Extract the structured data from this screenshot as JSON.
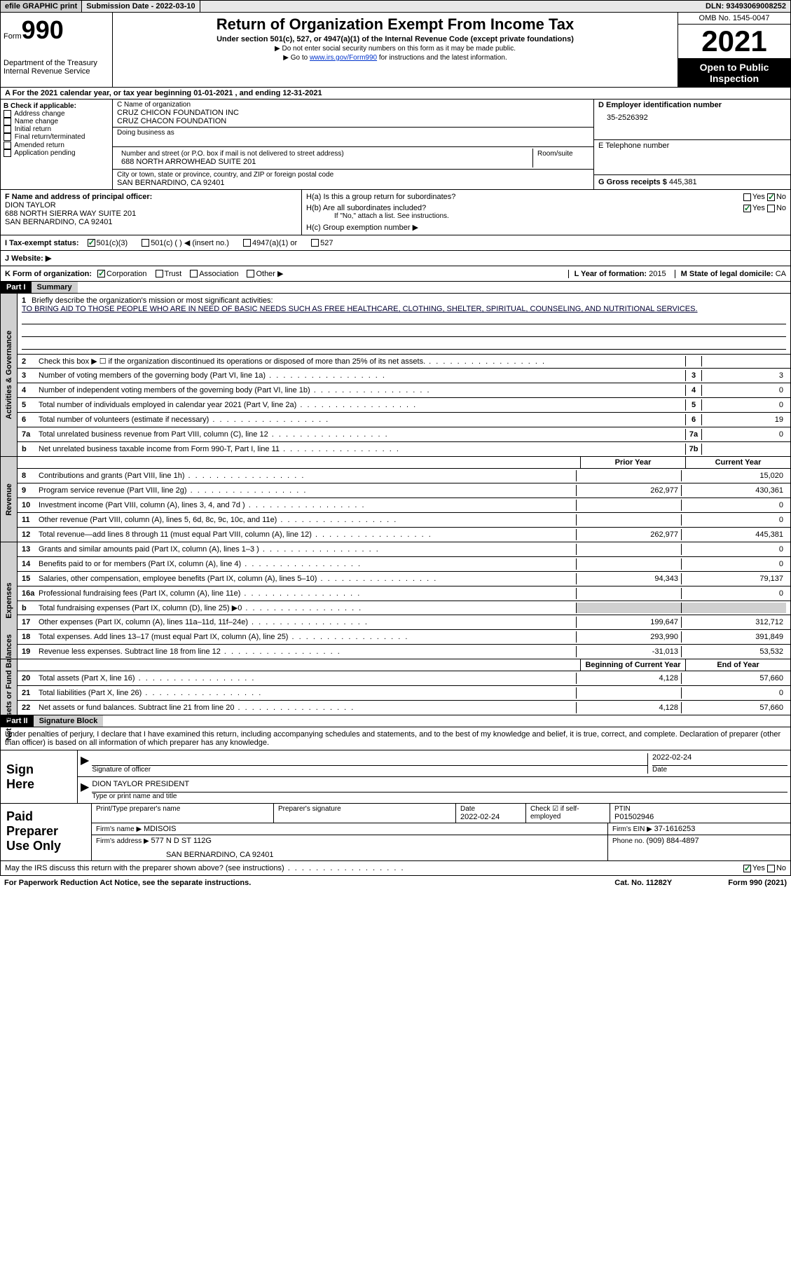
{
  "top_bar": {
    "efile": "efile GRAPHIC print",
    "sub_date_label": "Submission Date - ",
    "sub_date": "2022-03-10",
    "dln_label": "DLN: ",
    "dln": "93493069008252"
  },
  "header": {
    "form_label": "Form",
    "form_no": "990",
    "dept": "Department of the Treasury",
    "irs": "Internal Revenue Service",
    "title": "Return of Organization Exempt From Income Tax",
    "subtitle": "Under section 501(c), 527, or 4947(a)(1) of the Internal Revenue Code (except private foundations)",
    "line1": "▶ Do not enter social security numbers on this form as it may be made public.",
    "line2_pre": "▶ Go to ",
    "line2_link": "www.irs.gov/Form990",
    "line2_post": " for instructions and the latest information.",
    "omb": "OMB No. 1545-0047",
    "year": "2021",
    "open": "Open to Public Inspection"
  },
  "section_a": "A For the 2021 calendar year, or tax year beginning 01-01-2021    , and ending 12-31-2021",
  "col_b": {
    "heading": "B Check if applicable:",
    "items": [
      "Address change",
      "Name change",
      "Initial return",
      "Final return/terminated",
      "Amended return",
      "Application pending"
    ]
  },
  "col_c": {
    "name_label": "C Name of organization",
    "name1": "CRUZ CHICON FOUNDATION INC",
    "name2": "CRUZ CHACON FOUNDATION",
    "dba_label": "Doing business as",
    "addr_label": "Number and street (or P.O. box if mail is not delivered to street address)",
    "room_label": "Room/suite",
    "addr": "688 NORTH ARROWHEAD SUITE 201",
    "city_label": "City or town, state or province, country, and ZIP or foreign postal code",
    "city": "SAN BERNARDINO, CA  92401"
  },
  "col_d": {
    "ein_label": "D Employer identification number",
    "ein": "35-2526392",
    "phone_label": "E Telephone number",
    "gross_label": "G Gross receipts $ ",
    "gross": "445,381"
  },
  "col_f": {
    "label": "F  Name and address of principal officer:",
    "name": "DION TAYLOR",
    "addr1": "688 NORTH SIERRA WAY SUITE 201",
    "addr2": "SAN BERNARDINO, CA  92401"
  },
  "col_h": {
    "ha_label": "H(a)  Is this a group return for subordinates?",
    "hb_label": "H(b)  Are all subordinates included?",
    "hb_note": "If \"No,\" attach a list. See instructions.",
    "hc_label": "H(c)  Group exemption number ▶"
  },
  "status": {
    "i_label": "I  Tax-exempt status:",
    "opts": [
      "501(c)(3)",
      "501(c) (  ) ◀ (insert no.)",
      "4947(a)(1) or",
      "527"
    ],
    "j_label": "J  Website: ▶"
  },
  "row_k": {
    "k_label": "K Form of organization:",
    "opts": [
      "Corporation",
      "Trust",
      "Association",
      "Other ▶"
    ],
    "l_label": "L Year of formation: ",
    "l_val": "2015",
    "m_label": "M State of legal domicile: ",
    "m_val": "CA"
  },
  "part1": {
    "part": "Part I",
    "title": "Summary"
  },
  "mission": {
    "num": "1",
    "label": "Briefly describe the organization's mission or most significant activities:",
    "text": "TO BRING AID TO THOSE PEOPLE WHO ARE IN NEED OF BASIC NEEDS SUCH AS FREE HEALTHCARE, CLOTHING, SHELTER, SPIRITUAL, COUNSELING, AND NUTRITIONAL SERVICES."
  },
  "gov_lines": [
    {
      "num": "2",
      "label": "Check this box ▶ ☐ if the organization discontinued its operations or disposed of more than 25% of its net assets.",
      "box": "",
      "val": ""
    },
    {
      "num": "3",
      "label": "Number of voting members of the governing body (Part VI, line 1a)",
      "box": "3",
      "val": "3"
    },
    {
      "num": "4",
      "label": "Number of independent voting members of the governing body (Part VI, line 1b)",
      "box": "4",
      "val": "0"
    },
    {
      "num": "5",
      "label": "Total number of individuals employed in calendar year 2021 (Part V, line 2a)",
      "box": "5",
      "val": "0"
    },
    {
      "num": "6",
      "label": "Total number of volunteers (estimate if necessary)",
      "box": "6",
      "val": "19"
    },
    {
      "num": "7a",
      "label": "Total unrelated business revenue from Part VIII, column (C), line 12",
      "box": "7a",
      "val": "0"
    },
    {
      "num": "b",
      "label": "Net unrelated business taxable income from Form 990-T, Part I, line 11",
      "box": "7b",
      "val": ""
    }
  ],
  "col_headers": {
    "prior": "Prior Year",
    "curr": "Current Year"
  },
  "revenue": [
    {
      "num": "8",
      "label": "Contributions and grants (Part VIII, line 1h)",
      "prior": "",
      "curr": "15,020"
    },
    {
      "num": "9",
      "label": "Program service revenue (Part VIII, line 2g)",
      "prior": "262,977",
      "curr": "430,361"
    },
    {
      "num": "10",
      "label": "Investment income (Part VIII, column (A), lines 3, 4, and 7d )",
      "prior": "",
      "curr": "0"
    },
    {
      "num": "11",
      "label": "Other revenue (Part VIII, column (A), lines 5, 6d, 8c, 9c, 10c, and 11e)",
      "prior": "",
      "curr": "0"
    },
    {
      "num": "12",
      "label": "Total revenue—add lines 8 through 11 (must equal Part VIII, column (A), line 12)",
      "prior": "262,977",
      "curr": "445,381"
    }
  ],
  "expenses": [
    {
      "num": "13",
      "label": "Grants and similar amounts paid (Part IX, column (A), lines 1–3 )",
      "prior": "",
      "curr": "0"
    },
    {
      "num": "14",
      "label": "Benefits paid to or for members (Part IX, column (A), line 4)",
      "prior": "",
      "curr": "0"
    },
    {
      "num": "15",
      "label": "Salaries, other compensation, employee benefits (Part IX, column (A), lines 5–10)",
      "prior": "94,343",
      "curr": "79,137"
    },
    {
      "num": "16a",
      "label": "Professional fundraising fees (Part IX, column (A), line 11e)",
      "prior": "",
      "curr": "0"
    },
    {
      "num": "b",
      "label": "Total fundraising expenses (Part IX, column (D), line 25) ▶0",
      "prior": "GRAY",
      "curr": "GRAY"
    },
    {
      "num": "17",
      "label": "Other expenses (Part IX, column (A), lines 11a–11d, 11f–24e)",
      "prior": "199,647",
      "curr": "312,712"
    },
    {
      "num": "18",
      "label": "Total expenses. Add lines 13–17 (must equal Part IX, column (A), line 25)",
      "prior": "293,990",
      "curr": "391,849"
    },
    {
      "num": "19",
      "label": "Revenue less expenses. Subtract line 18 from line 12",
      "prior": "-31,013",
      "curr": "53,532"
    }
  ],
  "net_headers": {
    "beg": "Beginning of Current Year",
    "end": "End of Year"
  },
  "net": [
    {
      "num": "20",
      "label": "Total assets (Part X, line 16)",
      "prior": "4,128",
      "curr": "57,660"
    },
    {
      "num": "21",
      "label": "Total liabilities (Part X, line 26)",
      "prior": "",
      "curr": "0"
    },
    {
      "num": "22",
      "label": "Net assets or fund balances. Subtract line 21 from line 20",
      "prior": "4,128",
      "curr": "57,660"
    }
  ],
  "part2": {
    "part": "Part II",
    "title": "Signature Block",
    "declaration": "Under penalties of perjury, I declare that I have examined this return, including accompanying schedules and statements, and to the best of my knowledge and belief, it is true, correct, and complete. Declaration of preparer (other than officer) is based on all information of which preparer has any knowledge."
  },
  "sign": {
    "label": "Sign Here",
    "sig_label": "Signature of officer",
    "date": "2022-02-24",
    "date_label": "Date",
    "name": "DION TAYLOR  PRESIDENT",
    "name_label": "Type or print name and title"
  },
  "prep": {
    "label": "Paid Preparer Use Only",
    "print_label": "Print/Type preparer's name",
    "sig_label": "Preparer's signature",
    "date_label": "Date",
    "date": "2022-02-24",
    "check_label": "Check ☑ if self-employed",
    "ptin_label": "PTIN",
    "ptin": "P01502946",
    "firm_name_label": "Firm's name    ▶ ",
    "firm_name": "MDISOIS",
    "firm_ein_label": "Firm's EIN ▶ ",
    "firm_ein": "37-1616253",
    "firm_addr_label": "Firm's address ▶ ",
    "firm_addr1": "577 N D ST 112G",
    "firm_addr2": "SAN BERNARDINO, CA  92401",
    "phone_label": "Phone no. ",
    "phone": "(909) 884-4897"
  },
  "footer": {
    "discuss": "May the IRS discuss this return with the preparer shown above? (see instructions)",
    "notice": "For Paperwork Reduction Act Notice, see the separate instructions.",
    "cat": "Cat. No. 11282Y",
    "form": "Form 990 (2021)"
  },
  "side_labels": {
    "gov": "Activities & Governance",
    "rev": "Revenue",
    "exp": "Expenses",
    "net": "Net Assets or Fund Balances"
  },
  "colors": {
    "link": "#0033cc",
    "check": "#0a7a2a"
  }
}
